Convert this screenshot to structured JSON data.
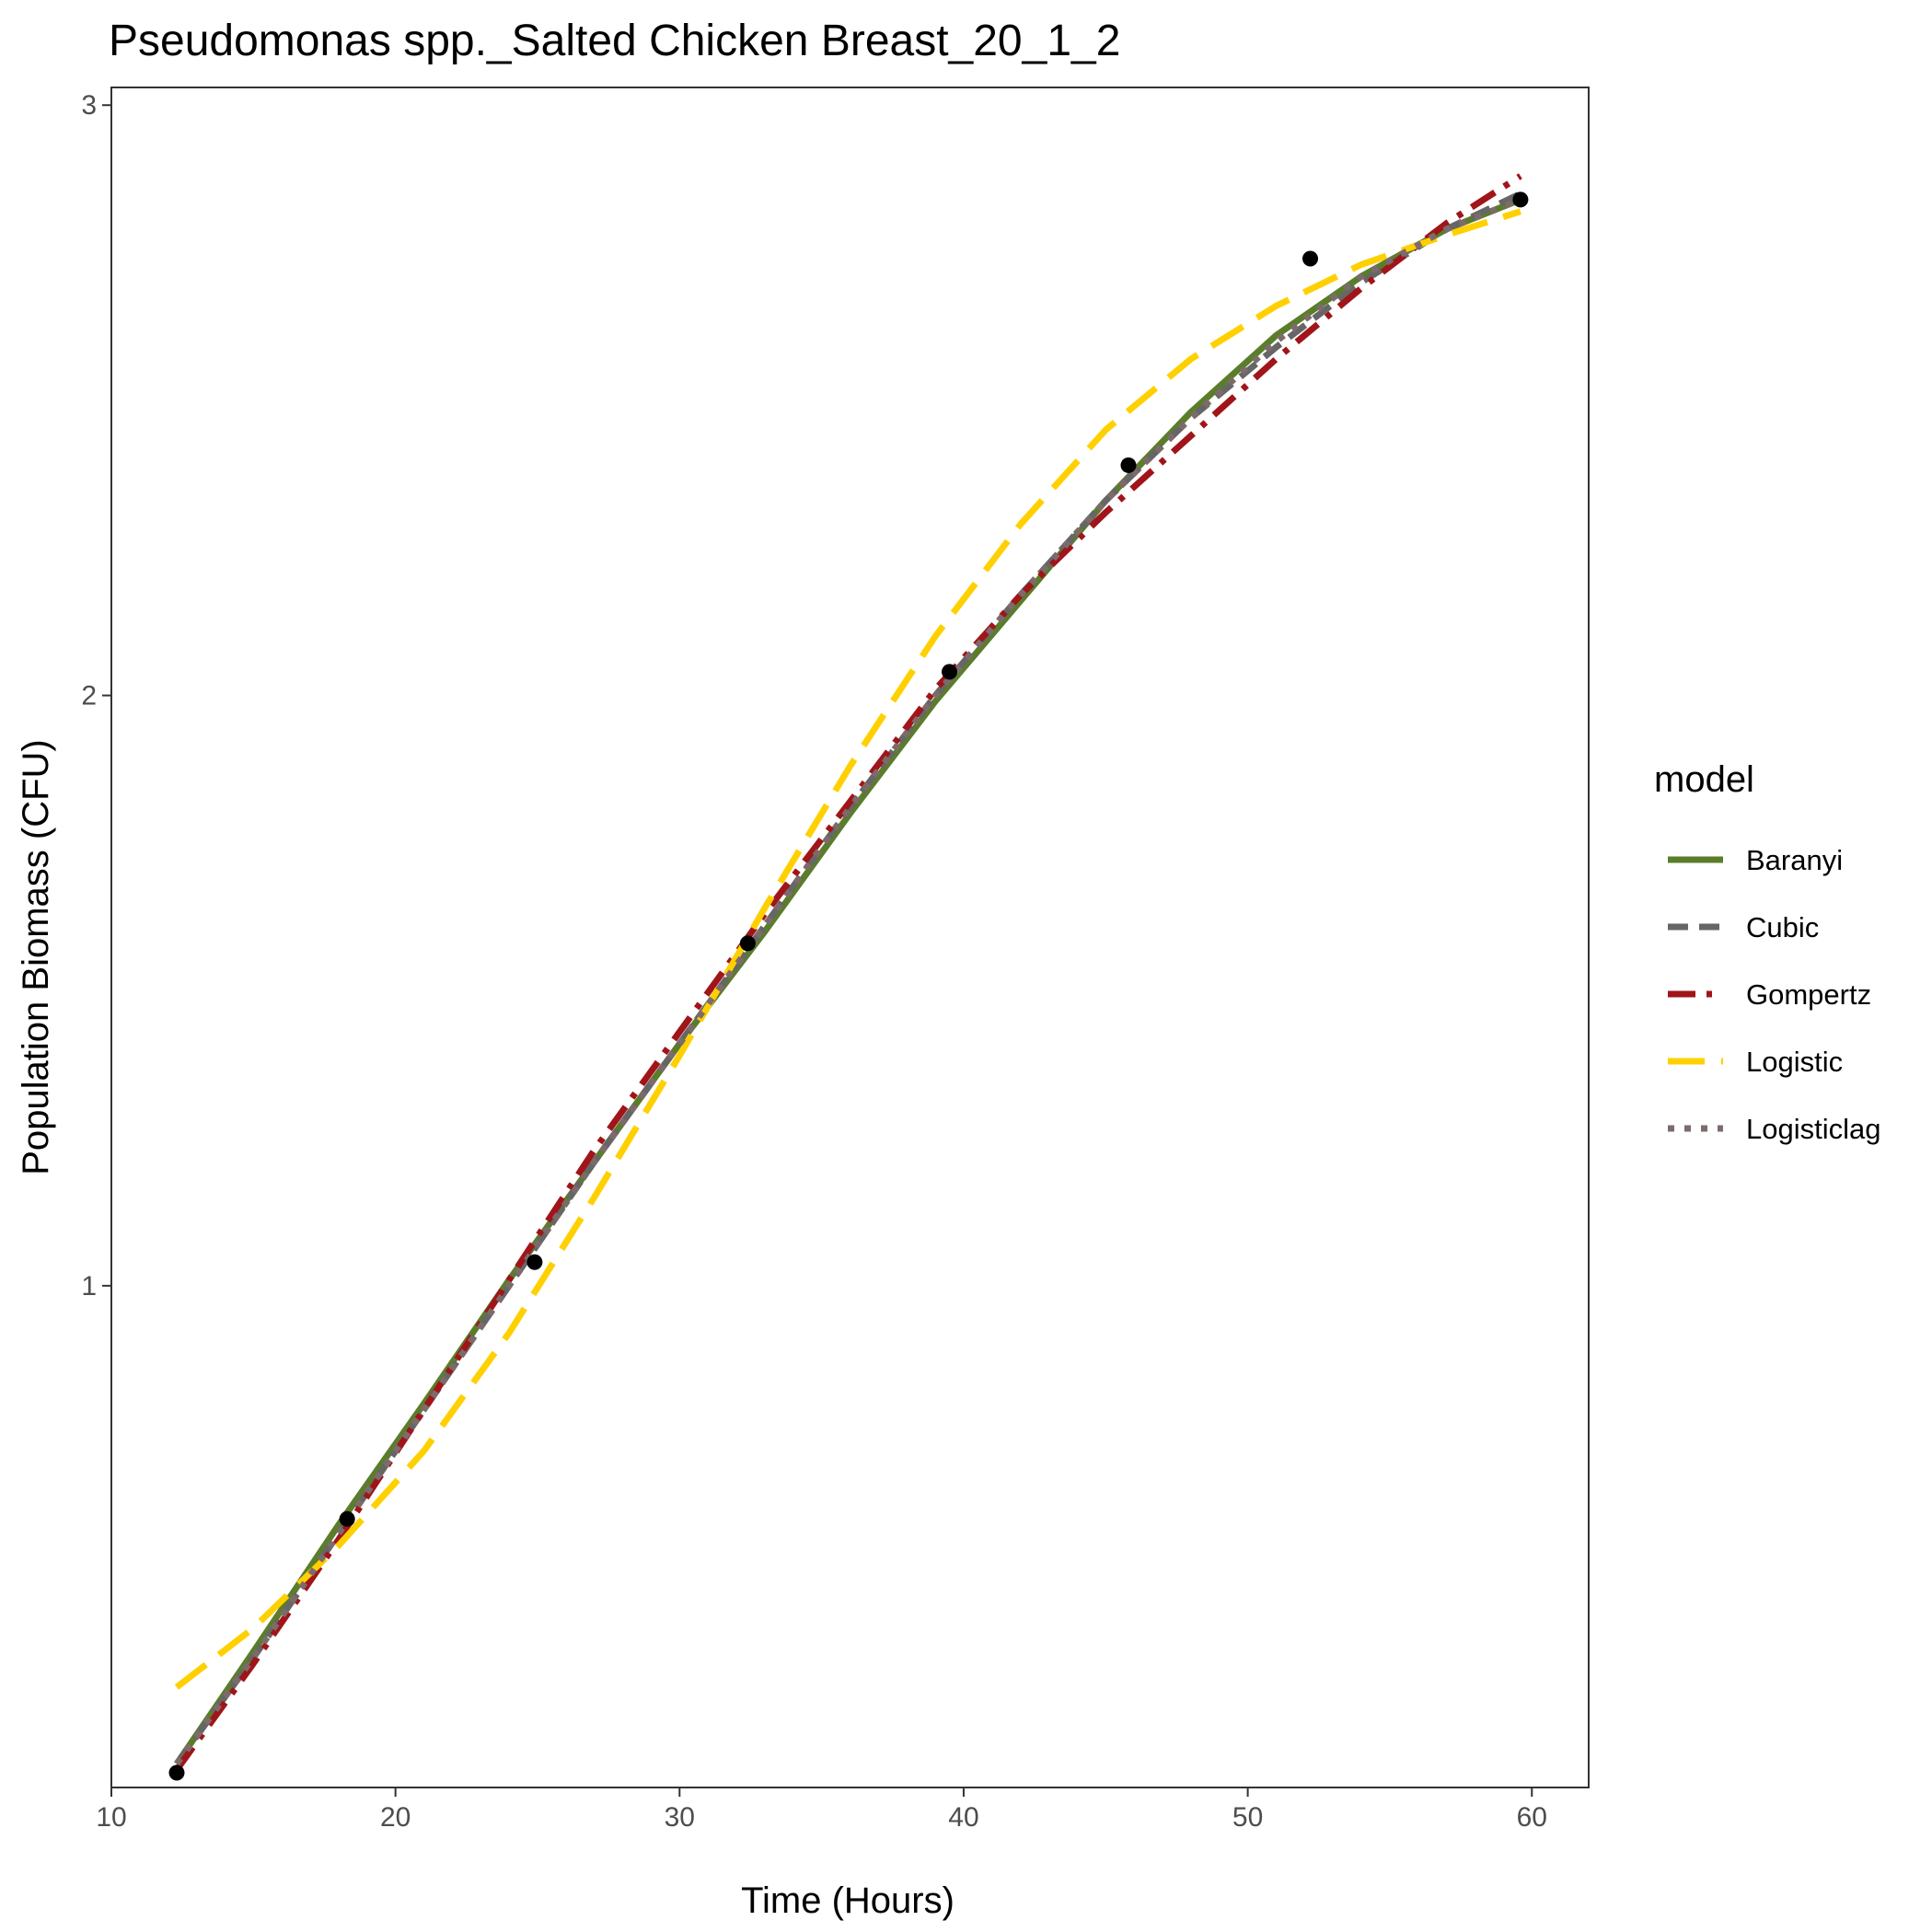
{
  "chart_data": {
    "type": "line",
    "title": "Pseudomonas spp._Salted Chicken Breast_20_1_2",
    "xlabel": "Time (Hours)",
    "ylabel": "Population Biomass (CFU)",
    "xlim": [
      10,
      62
    ],
    "ylim": [
      0.15,
      3.03
    ],
    "x_ticks": [
      10,
      20,
      30,
      40,
      50,
      60
    ],
    "y_ticks": [
      1,
      2,
      3
    ],
    "grid": false,
    "legend": {
      "title": "model",
      "position": "right"
    },
    "points": {
      "color": "#000000",
      "x": [
        12.3,
        18.3,
        24.9,
        32.4,
        39.5,
        45.8,
        52.2,
        59.6
      ],
      "y": [
        0.175,
        0.605,
        1.04,
        1.58,
        2.04,
        2.39,
        2.74,
        2.84
      ]
    },
    "series": [
      {
        "name": "Baranyi",
        "color": "#5a7d2a",
        "dash": "solid",
        "x": [
          12.3,
          15,
          18,
          21,
          24,
          27,
          30,
          33,
          36,
          39,
          42,
          45,
          48,
          51,
          54,
          57,
          59.6
        ],
        "y": [
          0.19,
          0.38,
          0.595,
          0.8,
          1.01,
          1.21,
          1.41,
          1.6,
          1.8,
          1.99,
          2.16,
          2.33,
          2.48,
          2.61,
          2.71,
          2.79,
          2.84
        ]
      },
      {
        "name": "Cubic",
        "color": "#666666",
        "dash": "dashed",
        "x": [
          12.3,
          15,
          18,
          21,
          24,
          27,
          30,
          33,
          36,
          39,
          42,
          45,
          48,
          51,
          54,
          57,
          59.6
        ],
        "y": [
          0.19,
          0.37,
          0.58,
          0.79,
          1.0,
          1.21,
          1.41,
          1.61,
          1.81,
          2.0,
          2.17,
          2.33,
          2.47,
          2.59,
          2.7,
          2.79,
          2.85
        ]
      },
      {
        "name": "Gompertz",
        "color": "#a0151a",
        "dash": "dashdot",
        "x": [
          12.3,
          15,
          18,
          21,
          24,
          27,
          30,
          33,
          36,
          39,
          42,
          45,
          48,
          51,
          54,
          57,
          59.6
        ],
        "y": [
          0.18,
          0.36,
          0.57,
          0.79,
          1.01,
          1.23,
          1.43,
          1.63,
          1.82,
          2.01,
          2.17,
          2.31,
          2.44,
          2.57,
          2.69,
          2.8,
          2.88
        ]
      },
      {
        "name": "Logistic",
        "color": "#ffd000",
        "dash": "longdash",
        "x": [
          12.3,
          15,
          18,
          21,
          24,
          27,
          30,
          33,
          36,
          39,
          42,
          45,
          48,
          51,
          54,
          57,
          59.6
        ],
        "y": [
          0.32,
          0.42,
          0.56,
          0.72,
          0.92,
          1.15,
          1.39,
          1.64,
          1.88,
          2.1,
          2.29,
          2.45,
          2.57,
          2.66,
          2.73,
          2.78,
          2.82
        ]
      },
      {
        "name": "Logisticlag",
        "color": "#7d6b6b",
        "dash": "dotted",
        "x": [
          12.3,
          15,
          18,
          21,
          24,
          27,
          30,
          33,
          36,
          39,
          42,
          45,
          48,
          51,
          54,
          57,
          59.6
        ],
        "y": [
          0.19,
          0.37,
          0.58,
          0.79,
          1.0,
          1.21,
          1.41,
          1.61,
          1.81,
          2.0,
          2.17,
          2.33,
          2.47,
          2.6,
          2.71,
          2.79,
          2.84
        ]
      }
    ]
  }
}
